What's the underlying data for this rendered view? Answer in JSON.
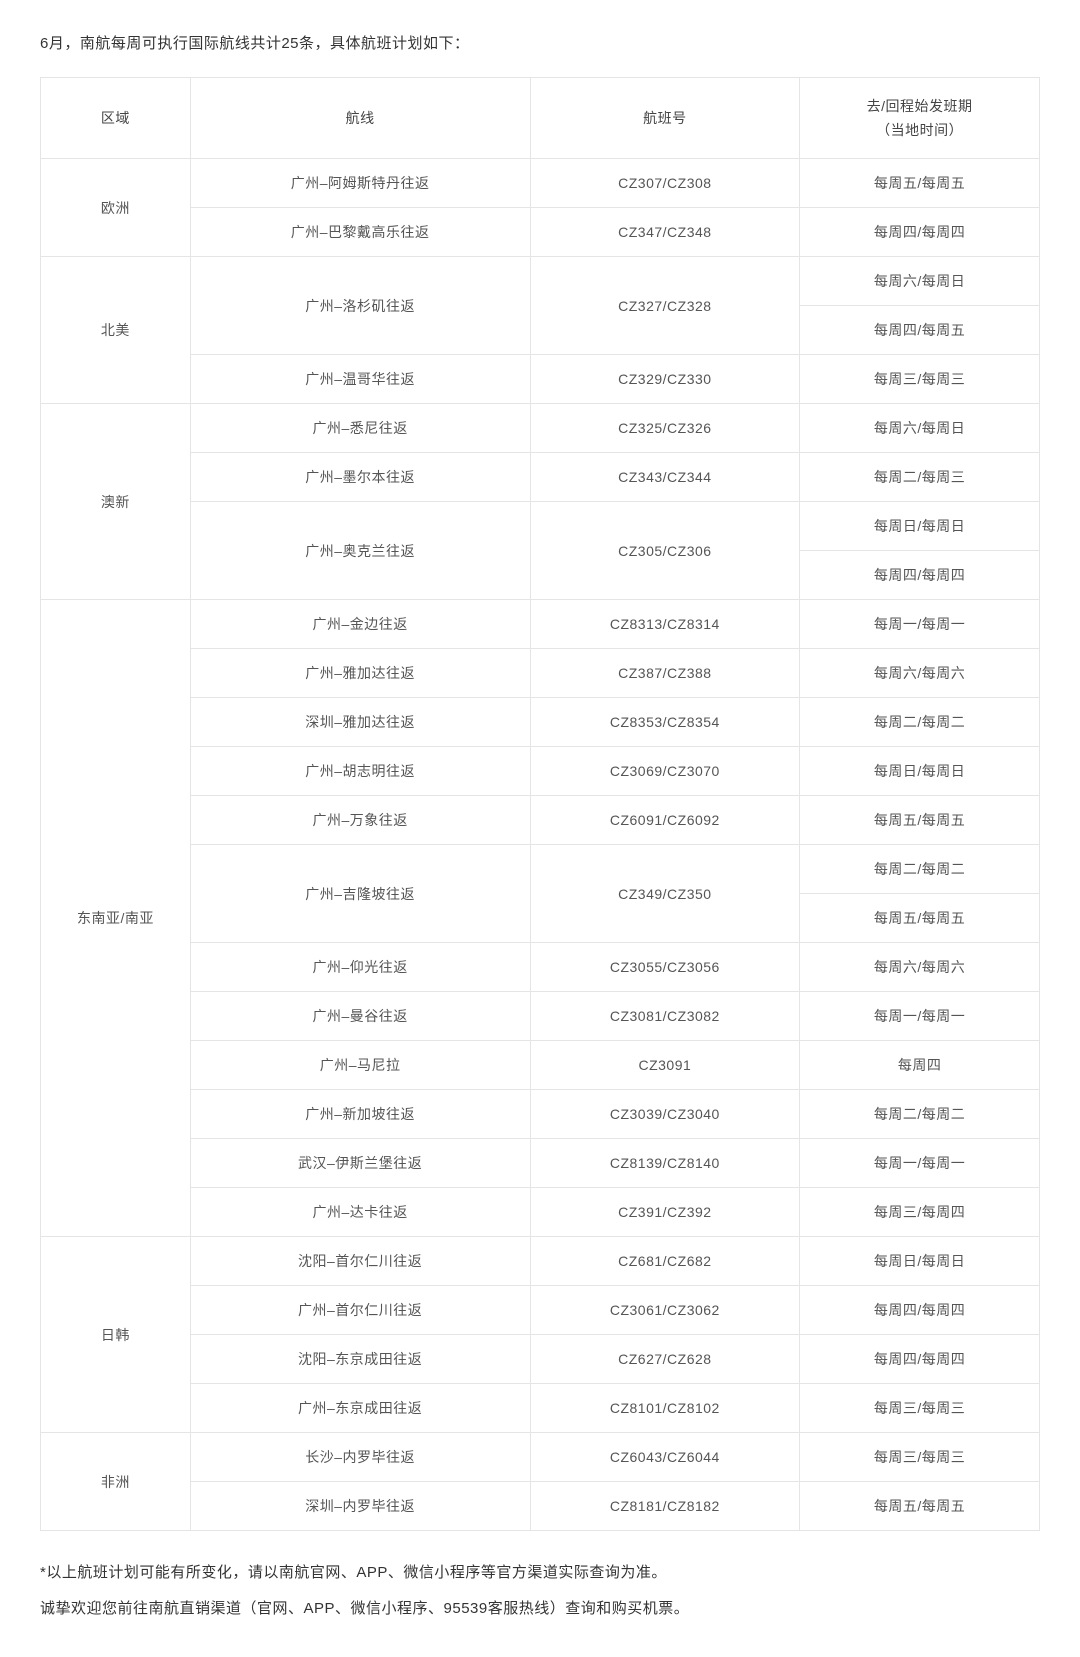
{
  "intro": "6月，南航每周可执行国际航线共计25条，具体航班计划如下：",
  "colors": {
    "text": "#333333",
    "cell_text": "#555555",
    "border": "#e5e5e5",
    "background": "#ffffff"
  },
  "table": {
    "headers": {
      "region": "区域",
      "route": "航线",
      "flight": "航班号",
      "schedule_line1": "去/回程始发班期",
      "schedule_line2": "（当地时间）"
    },
    "rows": [
      {
        "region": "欧洲",
        "region_rowspan": 2,
        "route": "广州–阿姆斯特丹往返",
        "route_rowspan": 1,
        "flight": "CZ307/CZ308",
        "flight_rowspan": 1,
        "schedule": "每周五/每周五"
      },
      {
        "route": "广州–巴黎戴高乐往返",
        "route_rowspan": 1,
        "flight": "CZ347/CZ348",
        "flight_rowspan": 1,
        "schedule": "每周四/每周四"
      },
      {
        "region": "北美",
        "region_rowspan": 3,
        "route": "广州–洛杉矶往返",
        "route_rowspan": 2,
        "flight": "CZ327/CZ328",
        "flight_rowspan": 2,
        "schedule": "每周六/每周日"
      },
      {
        "schedule": "每周四/每周五"
      },
      {
        "route": "广州–温哥华往返",
        "route_rowspan": 1,
        "flight": "CZ329/CZ330",
        "flight_rowspan": 1,
        "schedule": "每周三/每周三"
      },
      {
        "region": "澳新",
        "region_rowspan": 4,
        "route": "广州–悉尼往返",
        "route_rowspan": 1,
        "flight": "CZ325/CZ326",
        "flight_rowspan": 1,
        "schedule": "每周六/每周日"
      },
      {
        "route": "广州–墨尔本往返",
        "route_rowspan": 1,
        "flight": "CZ343/CZ344",
        "flight_rowspan": 1,
        "schedule": "每周二/每周三"
      },
      {
        "route": "广州–奥克兰往返",
        "route_rowspan": 2,
        "flight": "CZ305/CZ306",
        "flight_rowspan": 2,
        "schedule": "每周日/每周日"
      },
      {
        "schedule": "每周四/每周四"
      },
      {
        "region": "东南亚/南亚",
        "region_rowspan": 13,
        "route": "广州–金边往返",
        "route_rowspan": 1,
        "flight": "CZ8313/CZ8314",
        "flight_rowspan": 1,
        "schedule": "每周一/每周一"
      },
      {
        "route": "广州–雅加达往返",
        "route_rowspan": 1,
        "flight": "CZ387/CZ388",
        "flight_rowspan": 1,
        "schedule": "每周六/每周六"
      },
      {
        "route": "深圳–雅加达往返",
        "route_rowspan": 1,
        "flight": "CZ8353/CZ8354",
        "flight_rowspan": 1,
        "schedule": "每周二/每周二"
      },
      {
        "route": "广州–胡志明往返",
        "route_rowspan": 1,
        "flight": "CZ3069/CZ3070",
        "flight_rowspan": 1,
        "schedule": "每周日/每周日"
      },
      {
        "route": "广州–万象往返",
        "route_rowspan": 1,
        "flight": "CZ6091/CZ6092",
        "flight_rowspan": 1,
        "schedule": "每周五/每周五"
      },
      {
        "route": "广州–吉隆坡往返",
        "route_rowspan": 2,
        "flight": "CZ349/CZ350",
        "flight_rowspan": 2,
        "schedule": "每周二/每周二"
      },
      {
        "schedule": "每周五/每周五"
      },
      {
        "route": "广州–仰光往返",
        "route_rowspan": 1,
        "flight": "CZ3055/CZ3056",
        "flight_rowspan": 1,
        "schedule": "每周六/每周六"
      },
      {
        "route": "广州–曼谷往返",
        "route_rowspan": 1,
        "flight": "CZ3081/CZ3082",
        "flight_rowspan": 1,
        "schedule": "每周一/每周一"
      },
      {
        "route": "广州–马尼拉",
        "route_rowspan": 1,
        "flight": "CZ3091",
        "flight_rowspan": 1,
        "schedule": "每周四"
      },
      {
        "route": "广州–新加坡往返",
        "route_rowspan": 1,
        "flight": "CZ3039/CZ3040",
        "flight_rowspan": 1,
        "schedule": "每周二/每周二"
      },
      {
        "route": "武汉–伊斯兰堡往返",
        "route_rowspan": 1,
        "flight": "CZ8139/CZ8140",
        "flight_rowspan": 1,
        "schedule": "每周一/每周一"
      },
      {
        "route": "广州–达卡往返",
        "route_rowspan": 1,
        "flight": "CZ391/CZ392",
        "flight_rowspan": 1,
        "schedule": "每周三/每周四"
      },
      {
        "region": "日韩",
        "region_rowspan": 4,
        "route": "沈阳–首尔仁川往返",
        "route_rowspan": 1,
        "flight": "CZ681/CZ682",
        "flight_rowspan": 1,
        "schedule": "每周日/每周日"
      },
      {
        "route": "广州–首尔仁川往返",
        "route_rowspan": 1,
        "flight": "CZ3061/CZ3062",
        "flight_rowspan": 1,
        "schedule": "每周四/每周四"
      },
      {
        "route": "沈阳–东京成田往返",
        "route_rowspan": 1,
        "flight": "CZ627/CZ628",
        "flight_rowspan": 1,
        "schedule": "每周四/每周四"
      },
      {
        "route": "广州–东京成田往返",
        "route_rowspan": 1,
        "flight": "CZ8101/CZ8102",
        "flight_rowspan": 1,
        "schedule": "每周三/每周三"
      },
      {
        "region": "非洲",
        "region_rowspan": 2,
        "route": "长沙–内罗毕往返",
        "route_rowspan": 1,
        "flight": "CZ6043/CZ6044",
        "flight_rowspan": 1,
        "schedule": "每周三/每周三"
      },
      {
        "route": "深圳–内罗毕往返",
        "route_rowspan": 1,
        "flight": "CZ8181/CZ8182",
        "flight_rowspan": 1,
        "schedule": "每周五/每周五"
      }
    ]
  },
  "notes": {
    "line1": "*以上航班计划可能有所变化，请以南航官网、APP、微信小程序等官方渠道实际查询为准。",
    "line2": "诚挚欢迎您前往南航直销渠道（官网、APP、微信小程序、95539客服热线）查询和购买机票。"
  }
}
